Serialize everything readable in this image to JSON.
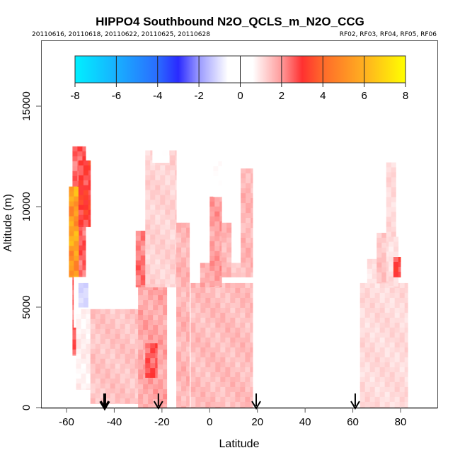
{
  "chart_data": {
    "type": "heatmap",
    "title": "HIPPO4 Southbound N2O_QCLS_m_N2O_CCG",
    "subtitle_left": "20110616, 20110618, 20110622, 20110625, 20110628",
    "subtitle_right": "RF02, RF03, RF04, RF05, RF06",
    "xlabel": "Latitude",
    "ylabel": "Altitude (m)",
    "xlim": [
      -70,
      90
    ],
    "ylim": [
      0,
      18000
    ],
    "x_ticks": [
      -60,
      -40,
      -20,
      0,
      20,
      40,
      60,
      80
    ],
    "x_tick_labels": [
      "-60",
      "-40",
      "-20",
      "0",
      "20",
      "40",
      "60",
      "80"
    ],
    "y_ticks": [
      0,
      5000,
      10000,
      15000
    ],
    "y_tick_labels": [
      "0",
      "5000",
      "10000",
      "15000"
    ],
    "grid": false,
    "colorbar": {
      "position": "top",
      "range": [
        -8,
        8
      ],
      "ticks": [
        -8,
        -6,
        -4,
        -2,
        0,
        2,
        4,
        6,
        8
      ],
      "tick_labels": [
        "-8",
        "-6",
        "-4",
        "-2",
        "0",
        "2",
        "4",
        "6",
        "8"
      ],
      "stops": [
        {
          "value": -8,
          "color": "#00f0ff"
        },
        {
          "value": -6,
          "color": "#18b0ff"
        },
        {
          "value": -4,
          "color": "#2a6cff"
        },
        {
          "value": -3,
          "color": "#2a2aff"
        },
        {
          "value": -2,
          "color": "#9a9aff"
        },
        {
          "value": -0.6,
          "color": "#ffffff"
        },
        {
          "value": 0.6,
          "color": "#ffffff"
        },
        {
          "value": 2,
          "color": "#ff9a9a"
        },
        {
          "value": 3,
          "color": "#ff3030"
        },
        {
          "value": 4,
          "color": "#ff6a2a"
        },
        {
          "value": 6,
          "color": "#ffb020"
        },
        {
          "value": 8,
          "color": "#ffff00"
        }
      ]
    },
    "flight_markers": [
      {
        "lat": -44,
        "style": "bold"
      },
      {
        "lat": -21.5,
        "style": "normal"
      },
      {
        "lat": 19.5,
        "style": "normal"
      },
      {
        "lat": 61,
        "style": "normal"
      }
    ],
    "profiles": [
      {
        "lat_min": -57.5,
        "lat_max": -52,
        "alt_min": 2600,
        "alt_max": 13000,
        "value": 2.5
      },
      {
        "lat_min": -59,
        "lat_max": -55,
        "alt_min": 6500,
        "alt_max": 11000,
        "value": 5.5
      },
      {
        "lat_min": -55,
        "lat_max": -50,
        "alt_min": 9000,
        "alt_max": 12300,
        "value": 3.0
      },
      {
        "lat_min": -57,
        "lat_max": -50,
        "alt_min": 4000,
        "alt_max": 6500,
        "value": 0.3
      },
      {
        "lat_min": -55,
        "lat_max": -51,
        "alt_min": 5000,
        "alt_max": 6200,
        "value": -1.2
      },
      {
        "lat_min": -56,
        "lat_max": -40,
        "alt_min": 900,
        "alt_max": 4900,
        "value": 0.8
      },
      {
        "lat_min": -50,
        "lat_max": -30,
        "alt_min": 200,
        "alt_max": 4900,
        "value": 1.4
      },
      {
        "lat_min": -30,
        "lat_max": -18,
        "alt_min": 0,
        "alt_max": 8800,
        "value": 1.8
      },
      {
        "lat_min": -27,
        "lat_max": -22,
        "alt_min": 1500,
        "alt_max": 3200,
        "value": 2.7
      },
      {
        "lat_min": -31,
        "lat_max": -27,
        "alt_min": 6000,
        "alt_max": 8800,
        "value": 2.3
      },
      {
        "lat_min": -27,
        "lat_max": -14,
        "alt_min": 6000,
        "alt_max": 12800,
        "value": 1.2
      },
      {
        "lat_min": -24,
        "lat_max": -17,
        "alt_min": 12200,
        "alt_max": 13300,
        "value": 0.4
      },
      {
        "lat_min": -14,
        "lat_max": -8.5,
        "alt_min": 0,
        "alt_max": 9200,
        "value": 1.6
      },
      {
        "lat_min": -8,
        "lat_max": 18,
        "alt_min": 0,
        "alt_max": 6200,
        "value": 1.5
      },
      {
        "lat_min": -4,
        "lat_max": 1,
        "alt_min": 6000,
        "alt_max": 7200,
        "value": 1.8
      },
      {
        "lat_min": 0,
        "lat_max": 5,
        "alt_min": 6000,
        "alt_max": 10500,
        "value": 1.9
      },
      {
        "lat_min": 1.5,
        "lat_max": 5,
        "alt_min": 10500,
        "alt_max": 13000,
        "value": 0.5
      },
      {
        "lat_min": 5,
        "lat_max": 9,
        "alt_min": 6500,
        "alt_max": 9200,
        "value": 1.6
      },
      {
        "lat_min": 9,
        "lat_max": 13,
        "alt_min": 6500,
        "alt_max": 7200,
        "value": 1.4
      },
      {
        "lat_min": 13,
        "lat_max": 18,
        "alt_min": 6500,
        "alt_max": 11900,
        "value": 1.6
      },
      {
        "lat_min": 63,
        "lat_max": 83,
        "alt_min": 0,
        "alt_max": 6200,
        "value": 1.1
      },
      {
        "lat_min": 66,
        "lat_max": 70,
        "alt_min": 6200,
        "alt_max": 7400,
        "value": 1.0
      },
      {
        "lat_min": 70,
        "lat_max": 74,
        "alt_min": 6200,
        "alt_max": 8700,
        "value": 1.4
      },
      {
        "lat_min": 74,
        "lat_max": 78,
        "alt_min": 6200,
        "alt_max": 12200,
        "value": 1.1
      },
      {
        "lat_min": 75,
        "lat_max": 79,
        "alt_min": 6000,
        "alt_max": 8500,
        "value": 1.0
      },
      {
        "lat_min": 77,
        "lat_max": 80,
        "alt_min": 6500,
        "alt_max": 7500,
        "value": 3.0
      }
    ]
  }
}
